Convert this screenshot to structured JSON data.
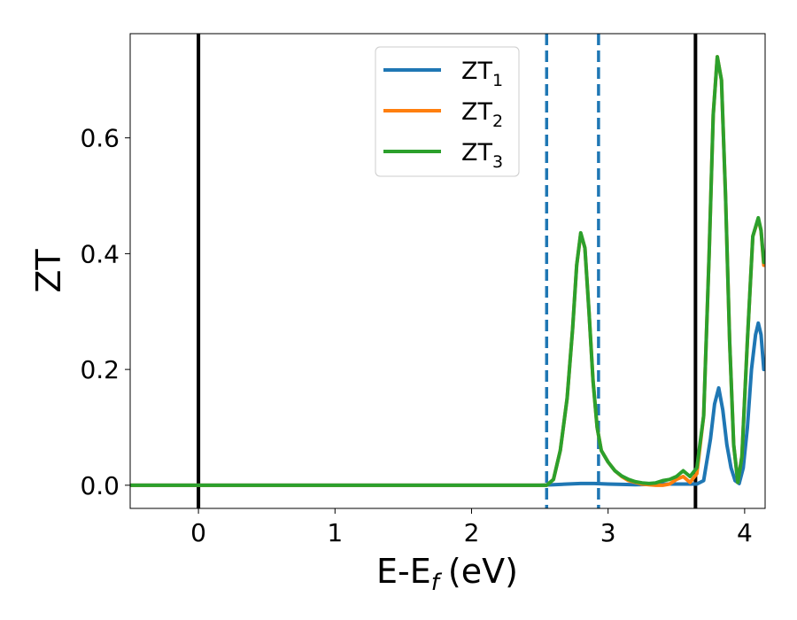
{
  "chart_data": {
    "type": "line",
    "xlabel": "E-E",
    "xlabel_sub": "f",
    "xlabel_unit": "(eV)",
    "ylabel": "ZT",
    "xlim": [
      -0.5,
      4.15
    ],
    "ylim": [
      -0.04,
      0.78
    ],
    "xticks": [
      0,
      1,
      2,
      3,
      4
    ],
    "xtick_labels": [
      "0",
      "1",
      "2",
      "3",
      "4"
    ],
    "yticks": [
      0.0,
      0.2,
      0.4,
      0.6
    ],
    "ytick_labels": [
      "0.0",
      "0.2",
      "0.4",
      "0.6"
    ],
    "grid": false,
    "legend_position": "top-center",
    "vlines": [
      {
        "x": 0.0,
        "style": "solid",
        "color": "#000000"
      },
      {
        "x": 2.55,
        "style": "dashed",
        "color": "#1f77b4"
      },
      {
        "x": 2.93,
        "style": "dashed",
        "color": "#1f77b4"
      },
      {
        "x": 3.64,
        "style": "solid",
        "color": "#000000"
      }
    ],
    "series": [
      {
        "name": "ZT",
        "name_sub": "1",
        "color": "#1f77b4",
        "points": [
          [
            -0.5,
            0
          ],
          [
            2.5,
            0
          ],
          [
            2.6,
            0.001
          ],
          [
            2.7,
            0.002
          ],
          [
            2.8,
            0.003
          ],
          [
            2.9,
            0.003
          ],
          [
            3.0,
            0.002
          ],
          [
            3.2,
            0.001
          ],
          [
            3.4,
            0.002
          ],
          [
            3.6,
            0.002
          ],
          [
            3.65,
            0.002
          ],
          [
            3.7,
            0.008
          ],
          [
            3.75,
            0.08
          ],
          [
            3.78,
            0.14
          ],
          [
            3.81,
            0.168
          ],
          [
            3.84,
            0.13
          ],
          [
            3.87,
            0.07
          ],
          [
            3.9,
            0.03
          ],
          [
            3.93,
            0.008
          ],
          [
            3.96,
            0.003
          ],
          [
            3.99,
            0.03
          ],
          [
            4.02,
            0.1
          ],
          [
            4.05,
            0.2
          ],
          [
            4.08,
            0.26
          ],
          [
            4.1,
            0.28
          ],
          [
            4.12,
            0.26
          ],
          [
            4.14,
            0.2
          ]
        ]
      },
      {
        "name": "ZT",
        "name_sub": "2",
        "color": "#ff7f0e",
        "points": [
          [
            -0.5,
            0
          ],
          [
            2.55,
            0
          ],
          [
            2.6,
            0.01
          ],
          [
            2.65,
            0.06
          ],
          [
            2.7,
            0.15
          ],
          [
            2.74,
            0.27
          ],
          [
            2.77,
            0.38
          ],
          [
            2.8,
            0.435
          ],
          [
            2.83,
            0.41
          ],
          [
            2.86,
            0.3
          ],
          [
            2.89,
            0.18
          ],
          [
            2.92,
            0.1
          ],
          [
            2.95,
            0.06
          ],
          [
            3.0,
            0.04
          ],
          [
            3.05,
            0.025
          ],
          [
            3.1,
            0.015
          ],
          [
            3.15,
            0.008
          ],
          [
            3.2,
            0.005
          ],
          [
            3.25,
            0.002
          ],
          [
            3.3,
            0.001
          ],
          [
            3.35,
            0.0
          ],
          [
            3.4,
            0.0
          ],
          [
            3.45,
            0.002
          ],
          [
            3.5,
            0.01
          ],
          [
            3.55,
            0.015
          ],
          [
            3.6,
            0.005
          ],
          [
            3.65,
            0.02
          ],
          [
            3.7,
            0.12
          ],
          [
            3.74,
            0.4
          ],
          [
            3.77,
            0.64
          ],
          [
            3.8,
            0.74
          ],
          [
            3.83,
            0.7
          ],
          [
            3.86,
            0.5
          ],
          [
            3.89,
            0.25
          ],
          [
            3.92,
            0.07
          ],
          [
            3.95,
            0.005
          ],
          [
            3.98,
            0.05
          ],
          [
            4.02,
            0.25
          ],
          [
            4.06,
            0.43
          ],
          [
            4.1,
            0.46
          ],
          [
            4.12,
            0.44
          ],
          [
            4.14,
            0.38
          ]
        ]
      },
      {
        "name": "ZT",
        "name_sub": "3",
        "color": "#2ca02c",
        "points": [
          [
            -0.5,
            0
          ],
          [
            2.55,
            0
          ],
          [
            2.6,
            0.01
          ],
          [
            2.65,
            0.06
          ],
          [
            2.7,
            0.15
          ],
          [
            2.74,
            0.27
          ],
          [
            2.77,
            0.38
          ],
          [
            2.8,
            0.436
          ],
          [
            2.83,
            0.41
          ],
          [
            2.86,
            0.3
          ],
          [
            2.89,
            0.18
          ],
          [
            2.92,
            0.1
          ],
          [
            2.95,
            0.06
          ],
          [
            3.0,
            0.04
          ],
          [
            3.05,
            0.025
          ],
          [
            3.1,
            0.016
          ],
          [
            3.15,
            0.01
          ],
          [
            3.2,
            0.006
          ],
          [
            3.25,
            0.004
          ],
          [
            3.3,
            0.003
          ],
          [
            3.35,
            0.004
          ],
          [
            3.4,
            0.008
          ],
          [
            3.45,
            0.01
          ],
          [
            3.5,
            0.015
          ],
          [
            3.55,
            0.025
          ],
          [
            3.6,
            0.015
          ],
          [
            3.65,
            0.03
          ],
          [
            3.7,
            0.12
          ],
          [
            3.74,
            0.4
          ],
          [
            3.77,
            0.64
          ],
          [
            3.8,
            0.74
          ],
          [
            3.83,
            0.7
          ],
          [
            3.86,
            0.5
          ],
          [
            3.89,
            0.25
          ],
          [
            3.92,
            0.07
          ],
          [
            3.95,
            0.005
          ],
          [
            3.98,
            0.05
          ],
          [
            4.02,
            0.25
          ],
          [
            4.06,
            0.43
          ],
          [
            4.1,
            0.462
          ],
          [
            4.12,
            0.44
          ],
          [
            4.14,
            0.385
          ]
        ]
      }
    ]
  }
}
